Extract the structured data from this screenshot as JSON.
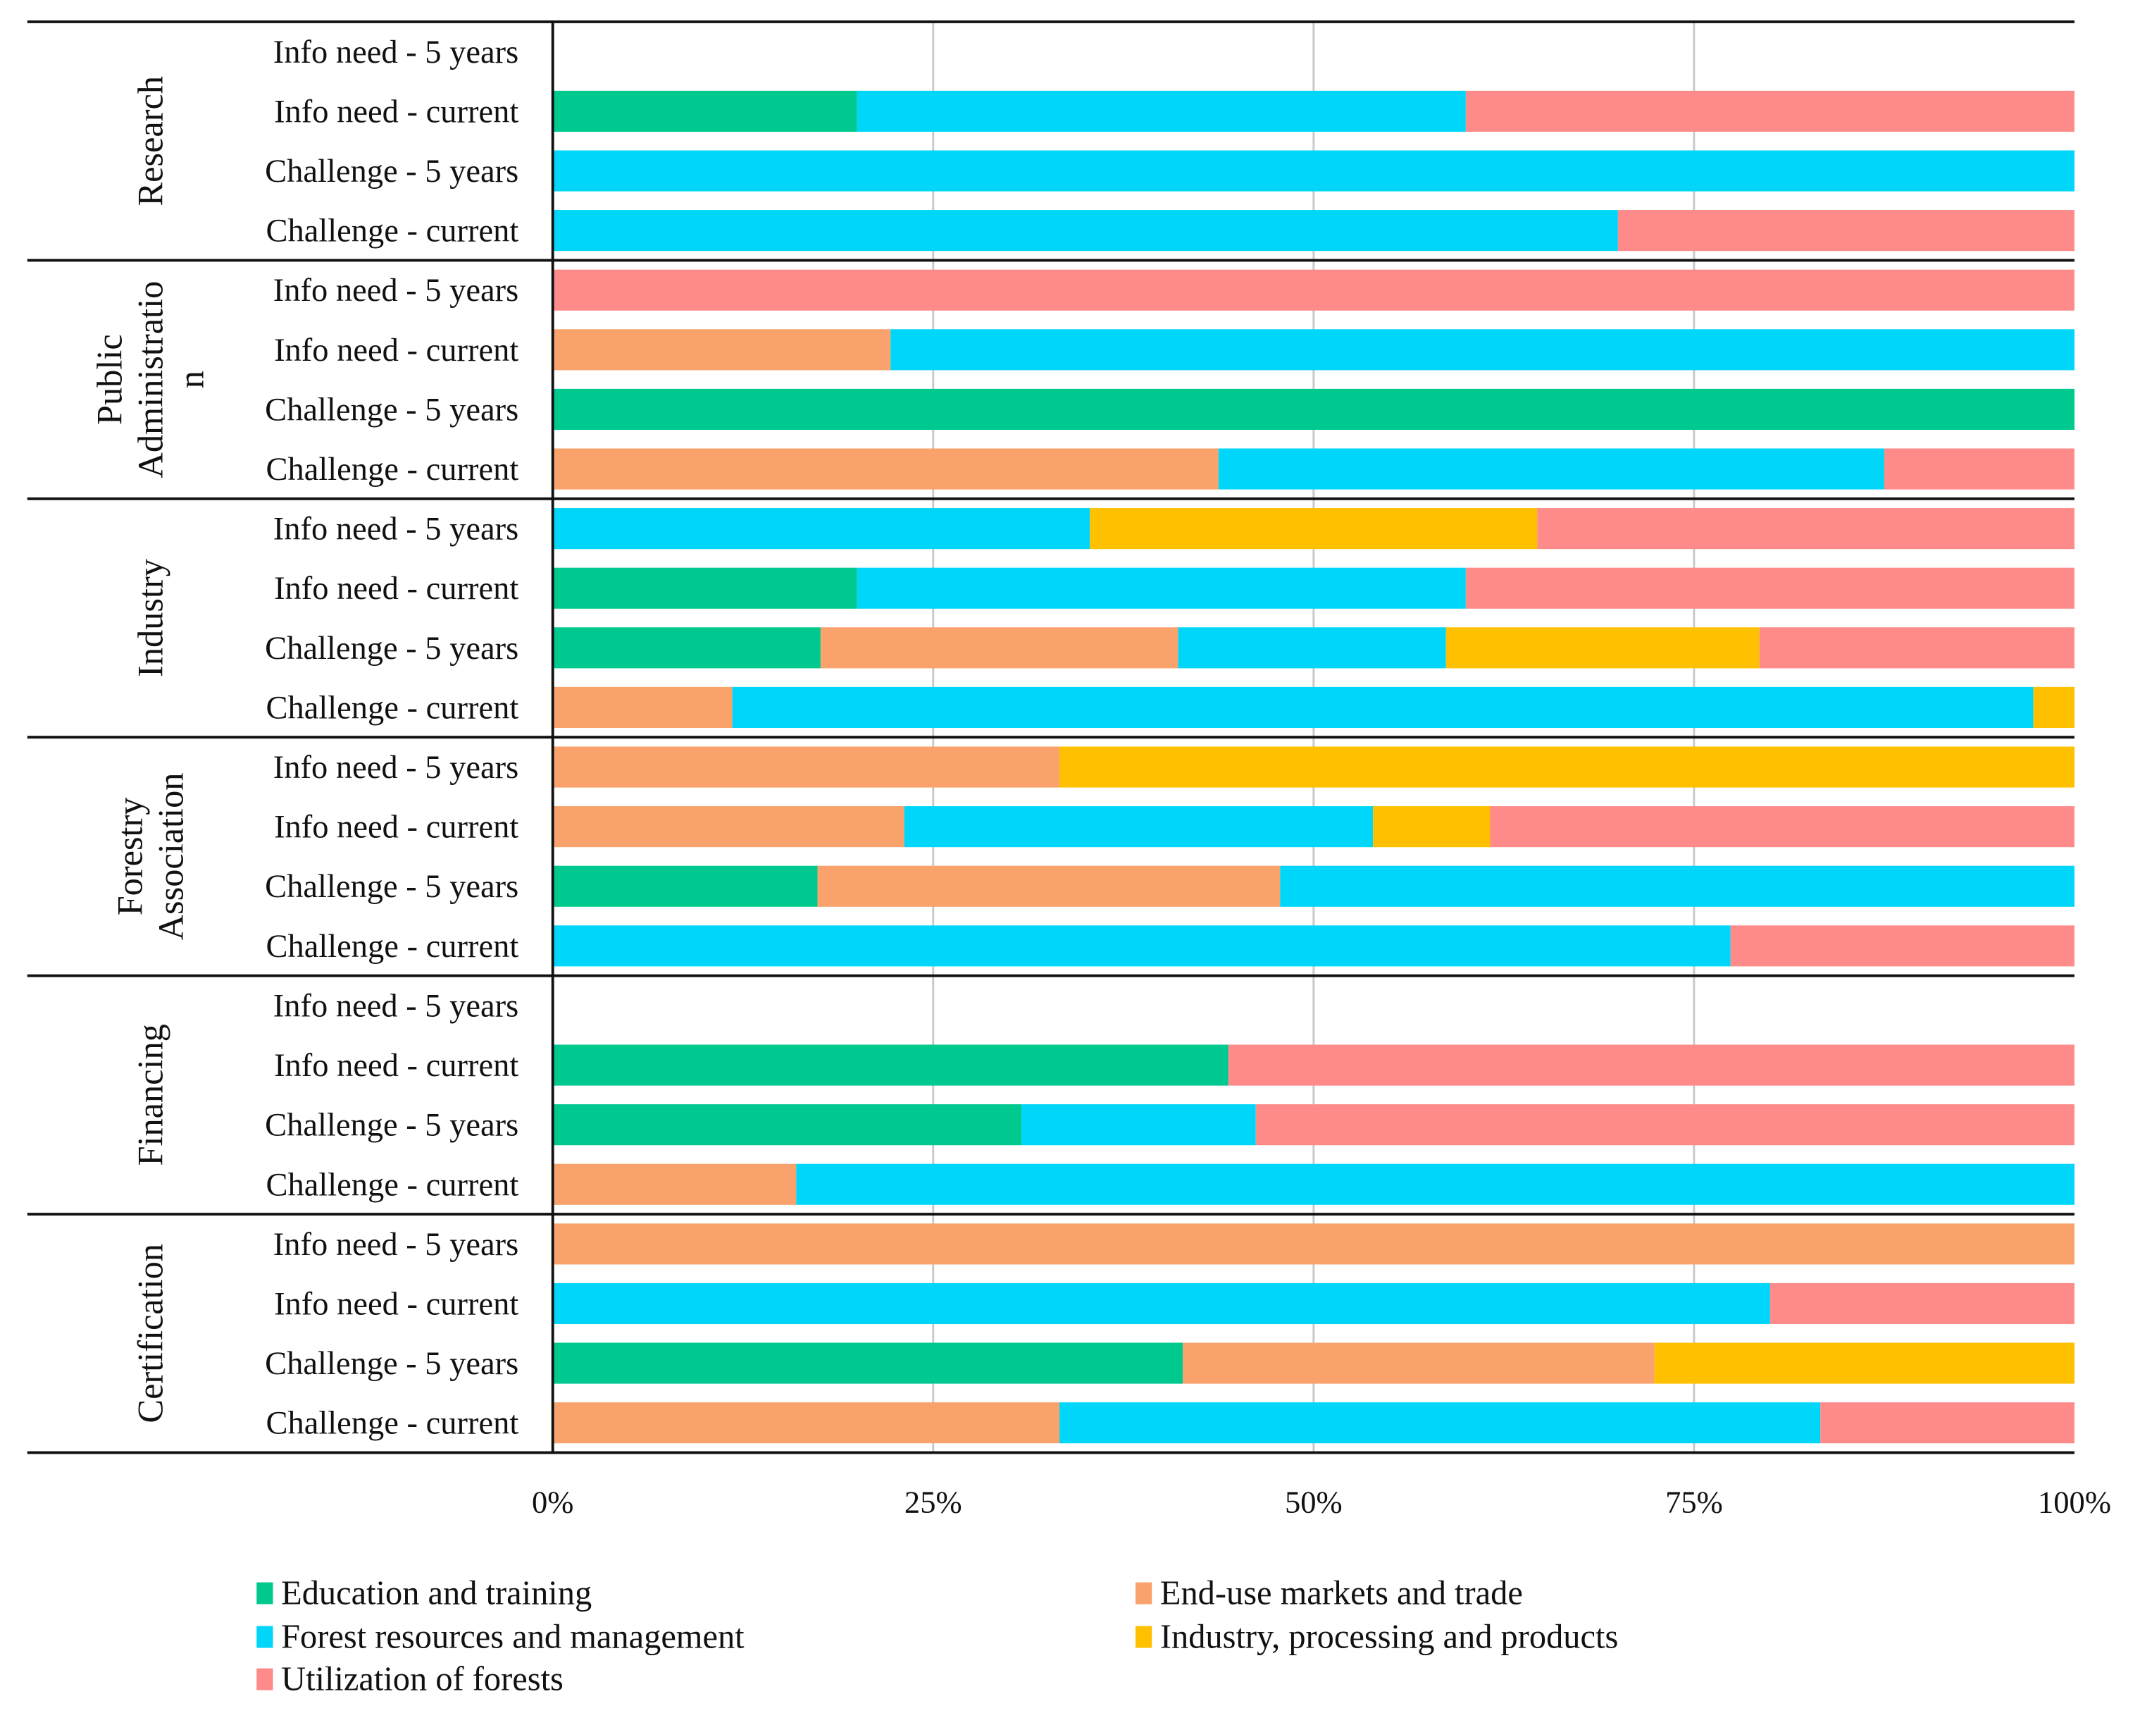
{
  "chart_data": {
    "type": "bar",
    "orientation": "horizontal",
    "stacked": "100%",
    "title": "",
    "xlabel": "",
    "ylabel": "",
    "xlim": [
      0,
      100
    ],
    "x_ticks": [
      "0%",
      "25%",
      "50%",
      "75%",
      "100%"
    ],
    "grid": true,
    "legend_position": "bottom",
    "series": [
      {
        "name": "Education and training",
        "color": "#00C98F"
      },
      {
        "name": "End-use markets and trade",
        "color": "#F9A26C"
      },
      {
        "name": "Forest resources and management",
        "color": "#00D6FA"
      },
      {
        "name": "Industry, processing and products",
        "color": "#FFC000"
      },
      {
        "name": "Utilization of forests",
        "color": "#FF8A8A"
      }
    ],
    "groups": [
      {
        "name": "Research",
        "rows": [
          {
            "label": "Info need - 5 years",
            "values": [
              0,
              0,
              0,
              0,
              0
            ]
          },
          {
            "label": "Info need - current",
            "values": [
              20,
              0,
              40,
              0,
              40
            ]
          },
          {
            "label": "Challenge - 5 years",
            "values": [
              0,
              0,
              100,
              0,
              0
            ]
          },
          {
            "label": "Challenge - current",
            "values": [
              0,
              0,
              70,
              0,
              30
            ]
          }
        ]
      },
      {
        "name": "Public Administratio n",
        "rows": [
          {
            "label": "Info need - 5 years",
            "values": [
              0,
              0,
              0,
              0,
              100
            ]
          },
          {
            "label": "Info need - current",
            "values": [
              0,
              22.2,
              77.8,
              0,
              0
            ]
          },
          {
            "label": "Challenge - 5 years",
            "values": [
              100,
              0,
              0,
              0,
              0
            ]
          },
          {
            "label": "Challenge - current",
            "values": [
              0,
              43.75,
              43.75,
              0,
              12.5
            ]
          }
        ]
      },
      {
        "name": "Industry",
        "rows": [
          {
            "label": "Info need - 5 years",
            "values": [
              0,
              0,
              35.3,
              29.4,
              35.3
            ]
          },
          {
            "label": "Info need - current",
            "values": [
              20,
              0,
              40,
              0,
              40
            ]
          },
          {
            "label": "Challenge - 5 years",
            "values": [
              17.6,
              23.5,
              17.6,
              20.6,
              20.7
            ]
          },
          {
            "label": "Challenge - current",
            "values": [
              0,
              11.8,
              85.5,
              2.7,
              0
            ]
          }
        ]
      },
      {
        "name": "Forestry Association",
        "rows": [
          {
            "label": "Info need - 5 years",
            "values": [
              0,
              33.3,
              0,
              66.7,
              0
            ]
          },
          {
            "label": "Info need - current",
            "values": [
              0,
              23.1,
              30.8,
              7.7,
              38.4
            ]
          },
          {
            "label": "Challenge - 5 years",
            "values": [
              17.4,
              30.4,
              52.2,
              0,
              0
            ]
          },
          {
            "label": "Challenge - current",
            "values": [
              0,
              0,
              77.4,
              0,
              22.6
            ]
          }
        ]
      },
      {
        "name": "Financing",
        "rows": [
          {
            "label": "Info need - 5 years",
            "values": [
              0,
              0,
              0,
              0,
              0
            ]
          },
          {
            "label": "Info need - current",
            "values": [
              44.4,
              0,
              0,
              0,
              55.6
            ]
          },
          {
            "label": "Challenge - 5 years",
            "values": [
              30.8,
              0,
              15.4,
              0,
              53.8
            ]
          },
          {
            "label": "Challenge - current",
            "values": [
              0,
              16,
              84,
              0,
              0
            ]
          }
        ]
      },
      {
        "name": "Certification",
        "rows": [
          {
            "label": "Info need - 5 years",
            "values": [
              0,
              100,
              0,
              0,
              0
            ]
          },
          {
            "label": "Info need - current",
            "values": [
              0,
              0,
              80,
              0,
              20
            ]
          },
          {
            "label": "Challenge - 5 years",
            "values": [
              41.4,
              31,
              0,
              27.6,
              0
            ]
          },
          {
            "label": "Challenge - current",
            "values": [
              0,
              33.3,
              50,
              0,
              16.7
            ]
          }
        ]
      }
    ]
  }
}
